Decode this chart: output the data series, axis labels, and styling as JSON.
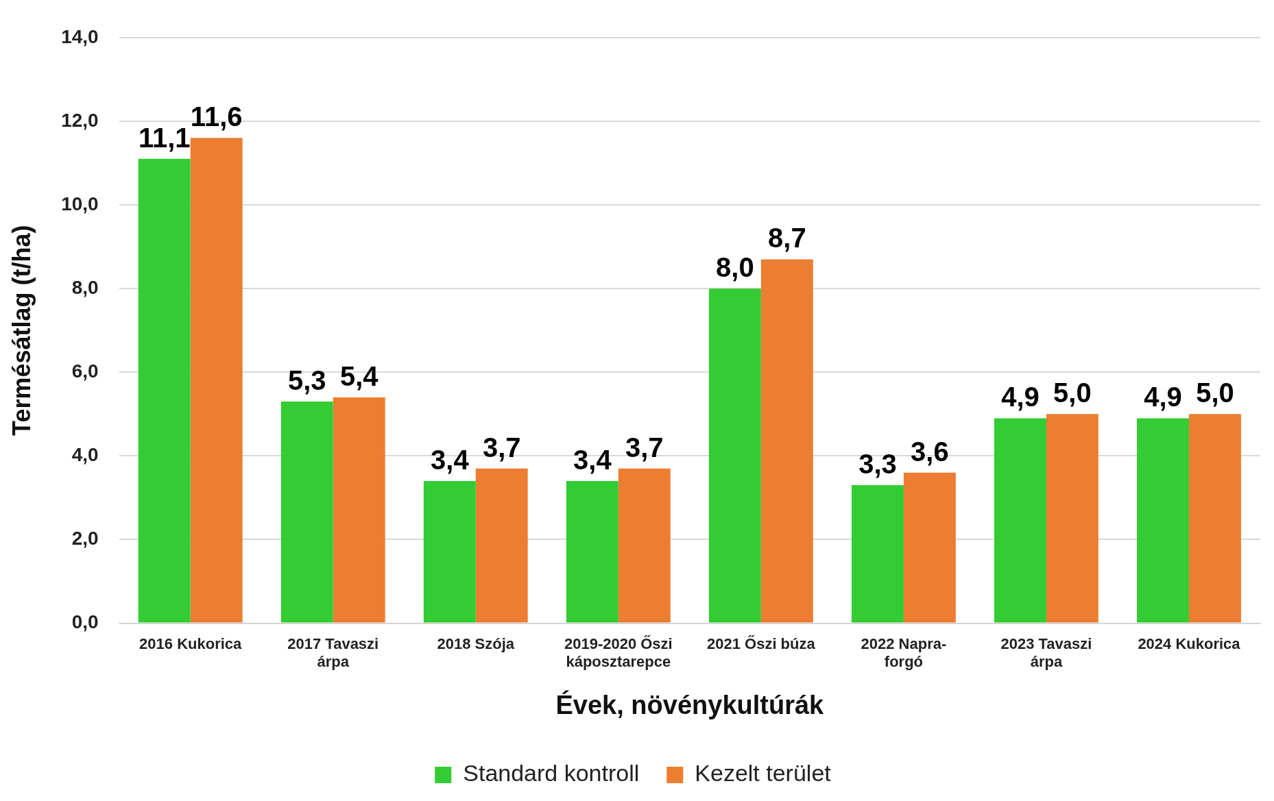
{
  "chart_data": {
    "type": "bar",
    "xlabel": "Évek, növénykultúrák",
    "ylabel": "Termésátlag (t/ha)",
    "categories": [
      "2016 Kukorica",
      "2017 Tavaszi árpa",
      "2018 Szója",
      "2019-2020 Őszi káposztarepce",
      "2021 Őszi búza",
      "2022 Napra-forgó",
      "2023 Tavaszi árpa",
      "2024 Kukorica"
    ],
    "series": [
      {
        "name": "Standard kontroll",
        "color": "#33cc33",
        "values": [
          11.1,
          5.3,
          3.4,
          3.4,
          8.0,
          3.3,
          4.9,
          4.9
        ],
        "value_labels": [
          "11,1",
          "5,3",
          "3,4",
          "3,4",
          "8,0",
          "3,3",
          "4,9",
          "4,9"
        ]
      },
      {
        "name": "Kezelt terület",
        "color": "#ed7d31",
        "values": [
          11.6,
          5.4,
          3.7,
          3.7,
          8.7,
          3.6,
          5.0,
          5.0
        ],
        "value_labels": [
          "11,6",
          "5,4",
          "3,7",
          "3,7",
          "8,7",
          "3,6",
          "5,0",
          "5,0"
        ]
      }
    ],
    "ylim": [
      0,
      14
    ],
    "yticks": [
      {
        "value": 0,
        "label": "0,0"
      },
      {
        "value": 2,
        "label": "2,0"
      },
      {
        "value": 4,
        "label": "4,0"
      },
      {
        "value": 6,
        "label": "6,0"
      },
      {
        "value": 8,
        "label": "8,0"
      },
      {
        "value": 10,
        "label": "10,0"
      },
      {
        "value": 12,
        "label": "12,0"
      },
      {
        "value": 14,
        "label": "14,0"
      }
    ],
    "grid": "y",
    "legend": "bottom"
  }
}
